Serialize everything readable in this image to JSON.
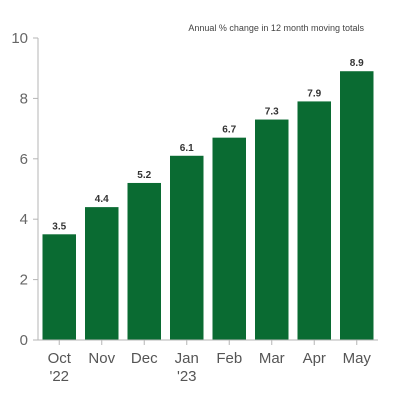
{
  "chart_data": {
    "type": "bar",
    "annotation": "Annual % change in 12 month moving totals",
    "categories": [
      [
        "Oct",
        "'22"
      ],
      [
        "Nov"
      ],
      [
        "Dec"
      ],
      [
        "Jan",
        "'23"
      ],
      [
        "Feb"
      ],
      [
        "Mar"
      ],
      [
        "Apr"
      ],
      [
        "May"
      ]
    ],
    "values": [
      3.5,
      4.4,
      5.2,
      6.1,
      6.7,
      7.3,
      7.9,
      8.9
    ],
    "data_labels": [
      "3.5",
      "4.4",
      "5.2",
      "6.1",
      "6.7",
      "7.3",
      "7.9",
      "8.9"
    ],
    "ylim": [
      0,
      10
    ],
    "yticks": [
      0,
      2,
      4,
      6,
      8,
      10
    ],
    "grid": false,
    "bar_color": "#0a6b32"
  }
}
